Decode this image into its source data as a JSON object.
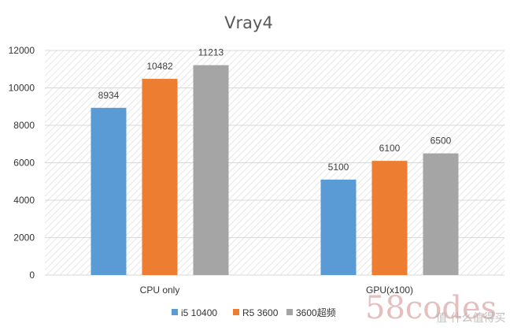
{
  "chart_data": {
    "type": "bar",
    "title": "Vray4",
    "categories": [
      "CPU only",
      "GPU(x100)"
    ],
    "series": [
      {
        "name": "i5 10400",
        "values": [
          8934,
          5100
        ],
        "color": "#5b9bd5"
      },
      {
        "name": "R5 3600",
        "values": [
          10482,
          6100
        ],
        "color": "#ed7d31"
      },
      {
        "name": "3600超频",
        "values": [
          11213,
          6500
        ],
        "color": "#a5a5a5"
      }
    ],
    "ylim": [
      0,
      12000
    ],
    "yticks": [
      0,
      2000,
      4000,
      6000,
      8000,
      10000,
      12000
    ],
    "grid": true,
    "legend_position": "bottom"
  },
  "watermark": {
    "code_text": "58codes",
    "site_text": "值 什么值得买"
  }
}
